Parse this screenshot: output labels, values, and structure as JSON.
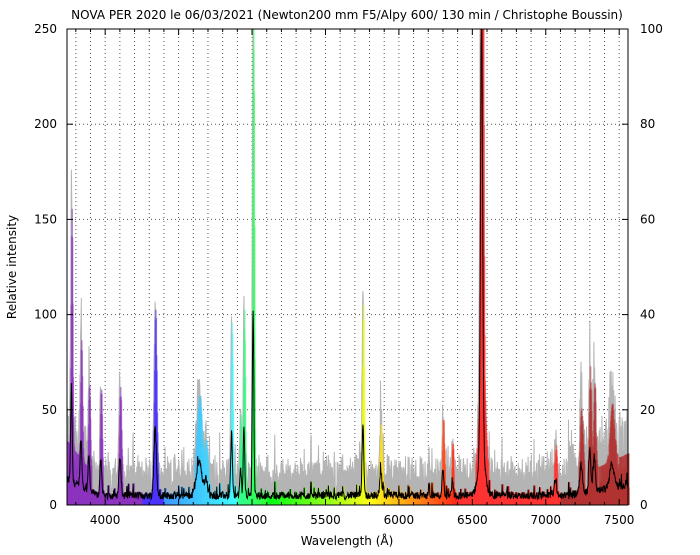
{
  "chart_data": {
    "type": "area",
    "title": "NOVA PER 2020 le 06/03/2021 (Newton200 mm F5/Alpy 600/ 130 min / Christophe Boussin)",
    "xlabel": "Wavelength (Å)",
    "ylabel": "Relative intensity",
    "xlim": [
      3740,
      7560
    ],
    "ylim": [
      0,
      250
    ],
    "y2lim": [
      0,
      100
    ],
    "xticks": [
      4000,
      4500,
      5000,
      5500,
      6000,
      6500,
      7000,
      7500
    ],
    "yticks": [
      0,
      50,
      100,
      150,
      200,
      250
    ],
    "y2ticks": [
      0,
      20,
      40,
      60,
      80,
      100
    ],
    "grid": true,
    "series": [
      {
        "role": "spectrum (left axis)",
        "color": "#000000"
      },
      {
        "role": "spectrum amplified (right axis scale)",
        "color": "#b4b4b4",
        "scale": 2.5
      }
    ],
    "fill": "wavelength-colored",
    "continuum": 5,
    "emission_lines": [
      {
        "wavelength": 3770,
        "peak": 50,
        "width": 5
      },
      {
        "wavelength": 3835,
        "peak": 25,
        "width": 6
      },
      {
        "wavelength": 3889,
        "peak": 18,
        "width": 6
      },
      {
        "wavelength": 3970,
        "peak": 20,
        "width": 6
      },
      {
        "wavelength": 4101,
        "peak": 20,
        "width": 7
      },
      {
        "wavelength": 4340,
        "peak": 36,
        "width": 8
      },
      {
        "wavelength": 4640,
        "peak": 18,
        "width": 18
      },
      {
        "wavelength": 4686,
        "peak": 8,
        "width": 10
      },
      {
        "wavelength": 4861,
        "peak": 34,
        "width": 5
      },
      {
        "wavelength": 4922,
        "peak": 14,
        "width": 5
      },
      {
        "wavelength": 4945,
        "peak": 36,
        "width": 5
      },
      {
        "wavelength": 5007,
        "peak": 98,
        "width": 5
      },
      {
        "wavelength": 5755,
        "peak": 37,
        "width": 6
      },
      {
        "wavelength": 5876,
        "peak": 12,
        "width": 7
      },
      {
        "wavelength": 6300,
        "peak": 14,
        "width": 6
      },
      {
        "wavelength": 6364,
        "peak": 8,
        "width": 6
      },
      {
        "wavelength": 6563,
        "peak": 232,
        "width": 7
      },
      {
        "wavelength": 6563,
        "peak": 25,
        "width": 22
      },
      {
        "wavelength": 7065,
        "peak": 8,
        "width": 8
      },
      {
        "wavelength": 7240,
        "peak": 14,
        "width": 10
      },
      {
        "wavelength": 7300,
        "peak": 22,
        "width": 7
      },
      {
        "wavelength": 7330,
        "peak": 18,
        "width": 7
      },
      {
        "wavelength": 7450,
        "peak": 12,
        "width": 15
      }
    ]
  }
}
